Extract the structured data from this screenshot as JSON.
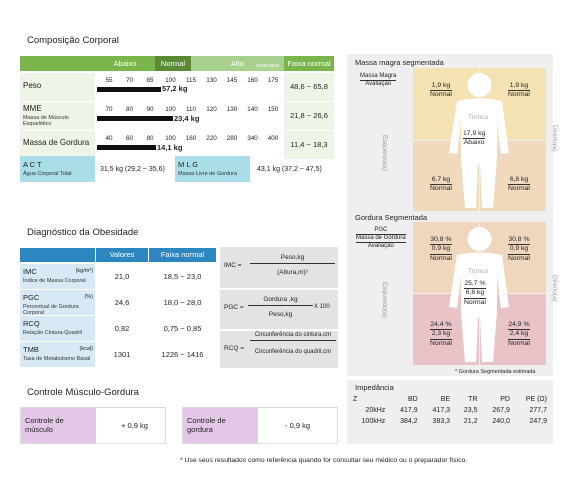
{
  "composition": {
    "title": "Composição Corporal",
    "header": {
      "low": "Abaixo",
      "normal": "Normal",
      "high": "Alto",
      "unit": "UNIDADES",
      "range": "Faixa normal"
    },
    "rows": [
      {
        "label": "Peso",
        "sub": "",
        "ticks": [
          "55",
          "70",
          "85",
          "100",
          "115",
          "130",
          "145",
          "160",
          "175"
        ],
        "value": "57,2 kg",
        "level": 0.34,
        "range": "48,6 ~ 65,8"
      },
      {
        "label": "MME",
        "sub": "Massa de Músculo Esquelético",
        "ticks": [
          "70",
          "80",
          "90",
          "100",
          "110",
          "120",
          "130",
          "140",
          "150"
        ],
        "value": "23,4 kg",
        "level": 0.4,
        "range": "21,8 ~ 26,6"
      },
      {
        "label": "Massa de Gordura",
        "sub": "",
        "ticks": [
          "40",
          "60",
          "80",
          "100",
          "160",
          "220",
          "280",
          "340",
          "400"
        ],
        "value": "14,1 kg",
        "level": 0.31,
        "range": "11,4 ~ 18,3"
      }
    ],
    "act": {
      "label": "A C T",
      "sub": "Água Corporal Total",
      "value": "31,5 kg (29,2 ~ 35,6)"
    },
    "mlg": {
      "label": "M L G",
      "sub": "Massa Livre de Gordura",
      "value": "43,1 kg (37,2 ~ 47,5)"
    }
  },
  "obesity": {
    "title": "Diagnóstico da Obesidade",
    "header": {
      "values": "Valores",
      "range": "Faixa normal"
    },
    "rows": [
      {
        "label": "IMC",
        "unit": "(kg/m²)",
        "sub": "Índice de Massa Corporal",
        "value": "21,0",
        "range": "18,5 ~ 23,0"
      },
      {
        "label": "PGC",
        "unit": "(%)",
        "sub": "Percentual de Gordura Corporal",
        "value": "24,6",
        "range": "18,0 ~ 28,0"
      },
      {
        "label": "RCQ",
        "unit": "",
        "sub": "Relação Cintura-Quadril",
        "value": "0,82",
        "range": "0,75 ~ 0,85"
      },
      {
        "label": "TMB",
        "unit": "(kcal)",
        "sub": "Taxa de Metabolismo Basal",
        "value": "1301",
        "range": "1226 ~ 1416"
      }
    ],
    "formulas": {
      "imc": {
        "lhs": "IMC =",
        "num": "Peso,kg",
        "den": "(Altura,m)²"
      },
      "pgc": {
        "lhs": "PGC =",
        "num": "Gordura ,kg",
        "den": "Peso,kg",
        "mult": "X 100"
      },
      "rcq": {
        "lhs": "RCQ =",
        "num": "Circunferência do cintura,cm",
        "den": "Circunferência do quadril,cm"
      }
    }
  },
  "control": {
    "title": "Controle Músculo-Gordura",
    "muscle": {
      "label": "Controle de músculo",
      "value": "+ 0,9 kg"
    },
    "fat": {
      "label": "Controle de gordura",
      "value": "- 0,9 kg"
    }
  },
  "lean": {
    "title": "Massa magra segmentada",
    "legend1": "Massa Magra",
    "legend2": "Avaliação",
    "left": "Esquerdo(a)",
    "right": "Direito(a)",
    "trunk_label": "Tronco",
    "arm_left": {
      "v": "1,9 kg",
      "e": "Normal"
    },
    "arm_right": {
      "v": "1,9 kg",
      "e": "Normal"
    },
    "trunk": {
      "v": "17,9 kg",
      "e": "Abaixo"
    },
    "leg_left": {
      "v": "6,7 kg",
      "e": "Normal"
    },
    "leg_right": {
      "v": "6,8 kg",
      "e": "Normal"
    }
  },
  "fatseg": {
    "title": "Gordura Segmentada",
    "legend1": "PGC",
    "legend2": "Massa de Gordura",
    "legend3": "Avaliação",
    "left": "Esquerdo(a)",
    "right": "Direito(a)",
    "trunk_label": "Tronco",
    "arm_left": {
      "p": "30,8 %",
      "v": "0,9 kg",
      "e": "Normal"
    },
    "arm_right": {
      "p": "30,8 %",
      "v": "0,9 kg",
      "e": "Normal"
    },
    "trunk": {
      "p": "25,7 %",
      "v": "6,6 kg",
      "e": "Normal"
    },
    "leg_left": {
      "p": "24,4 %",
      "v": "2,3 kg",
      "e": "Normal"
    },
    "leg_right": {
      "p": "24,9 %",
      "v": "2,4 kg",
      "e": "Normal"
    },
    "note": "* Gordura Segmentada estimada"
  },
  "impedance": {
    "title": "Impedância",
    "cols": [
      "Z",
      "BD",
      "BE",
      "TR",
      "PD",
      "PE (Ω)"
    ],
    "rows": [
      [
        "20kHz",
        "417,9",
        "417,3",
        "23,5",
        "267,9",
        "277,7"
      ],
      [
        "100kHz",
        "384,2",
        "383,3",
        "21,2",
        "240,0",
        "247,9"
      ]
    ]
  },
  "footnote": "* Use seus resultados como referência quando for consultar seu médico ou o preparador físico."
}
